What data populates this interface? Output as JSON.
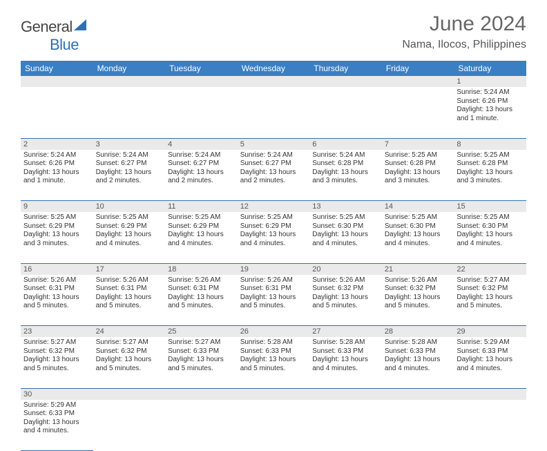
{
  "brand": {
    "text1": "General",
    "text2": "Blue",
    "shape_color": "#2f6fb3"
  },
  "title": "June 2024",
  "location": "Nama, Ilocos, Philippines",
  "colors": {
    "header_bg": "#3a7fc4",
    "header_text": "#ffffff",
    "border": "#2f6fb3",
    "daynum_bg": "#eaeaea",
    "text": "#333333",
    "title_color": "#666666"
  },
  "columns": [
    "Sunday",
    "Monday",
    "Tuesday",
    "Wednesday",
    "Thursday",
    "Friday",
    "Saturday"
  ],
  "weeks": [
    [
      null,
      null,
      null,
      null,
      null,
      null,
      {
        "n": "1",
        "sunrise": "5:24 AM",
        "sunset": "6:26 PM",
        "daylight": "13 hours and 1 minute."
      }
    ],
    [
      {
        "n": "2",
        "sunrise": "5:24 AM",
        "sunset": "6:26 PM",
        "daylight": "13 hours and 1 minute."
      },
      {
        "n": "3",
        "sunrise": "5:24 AM",
        "sunset": "6:27 PM",
        "daylight": "13 hours and 2 minutes."
      },
      {
        "n": "4",
        "sunrise": "5:24 AM",
        "sunset": "6:27 PM",
        "daylight": "13 hours and 2 minutes."
      },
      {
        "n": "5",
        "sunrise": "5:24 AM",
        "sunset": "6:27 PM",
        "daylight": "13 hours and 2 minutes."
      },
      {
        "n": "6",
        "sunrise": "5:24 AM",
        "sunset": "6:28 PM",
        "daylight": "13 hours and 3 minutes."
      },
      {
        "n": "7",
        "sunrise": "5:25 AM",
        "sunset": "6:28 PM",
        "daylight": "13 hours and 3 minutes."
      },
      {
        "n": "8",
        "sunrise": "5:25 AM",
        "sunset": "6:28 PM",
        "daylight": "13 hours and 3 minutes."
      }
    ],
    [
      {
        "n": "9",
        "sunrise": "5:25 AM",
        "sunset": "6:29 PM",
        "daylight": "13 hours and 3 minutes."
      },
      {
        "n": "10",
        "sunrise": "5:25 AM",
        "sunset": "6:29 PM",
        "daylight": "13 hours and 4 minutes."
      },
      {
        "n": "11",
        "sunrise": "5:25 AM",
        "sunset": "6:29 PM",
        "daylight": "13 hours and 4 minutes."
      },
      {
        "n": "12",
        "sunrise": "5:25 AM",
        "sunset": "6:29 PM",
        "daylight": "13 hours and 4 minutes."
      },
      {
        "n": "13",
        "sunrise": "5:25 AM",
        "sunset": "6:30 PM",
        "daylight": "13 hours and 4 minutes."
      },
      {
        "n": "14",
        "sunrise": "5:25 AM",
        "sunset": "6:30 PM",
        "daylight": "13 hours and 4 minutes."
      },
      {
        "n": "15",
        "sunrise": "5:25 AM",
        "sunset": "6:30 PM",
        "daylight": "13 hours and 4 minutes."
      }
    ],
    [
      {
        "n": "16",
        "sunrise": "5:26 AM",
        "sunset": "6:31 PM",
        "daylight": "13 hours and 5 minutes."
      },
      {
        "n": "17",
        "sunrise": "5:26 AM",
        "sunset": "6:31 PM",
        "daylight": "13 hours and 5 minutes."
      },
      {
        "n": "18",
        "sunrise": "5:26 AM",
        "sunset": "6:31 PM",
        "daylight": "13 hours and 5 minutes."
      },
      {
        "n": "19",
        "sunrise": "5:26 AM",
        "sunset": "6:31 PM",
        "daylight": "13 hours and 5 minutes."
      },
      {
        "n": "20",
        "sunrise": "5:26 AM",
        "sunset": "6:32 PM",
        "daylight": "13 hours and 5 minutes."
      },
      {
        "n": "21",
        "sunrise": "5:26 AM",
        "sunset": "6:32 PM",
        "daylight": "13 hours and 5 minutes."
      },
      {
        "n": "22",
        "sunrise": "5:27 AM",
        "sunset": "6:32 PM",
        "daylight": "13 hours and 5 minutes."
      }
    ],
    [
      {
        "n": "23",
        "sunrise": "5:27 AM",
        "sunset": "6:32 PM",
        "daylight": "13 hours and 5 minutes."
      },
      {
        "n": "24",
        "sunrise": "5:27 AM",
        "sunset": "6:32 PM",
        "daylight": "13 hours and 5 minutes."
      },
      {
        "n": "25",
        "sunrise": "5:27 AM",
        "sunset": "6:33 PM",
        "daylight": "13 hours and 5 minutes."
      },
      {
        "n": "26",
        "sunrise": "5:28 AM",
        "sunset": "6:33 PM",
        "daylight": "13 hours and 5 minutes."
      },
      {
        "n": "27",
        "sunrise": "5:28 AM",
        "sunset": "6:33 PM",
        "daylight": "13 hours and 4 minutes."
      },
      {
        "n": "28",
        "sunrise": "5:28 AM",
        "sunset": "6:33 PM",
        "daylight": "13 hours and 4 minutes."
      },
      {
        "n": "29",
        "sunrise": "5:29 AM",
        "sunset": "6:33 PM",
        "daylight": "13 hours and 4 minutes."
      }
    ],
    [
      {
        "n": "30",
        "sunrise": "5:29 AM",
        "sunset": "6:33 PM",
        "daylight": "13 hours and 4 minutes."
      },
      null,
      null,
      null,
      null,
      null,
      null
    ]
  ],
  "labels": {
    "sunrise": "Sunrise: ",
    "sunset": "Sunset: ",
    "daylight": "Daylight: "
  }
}
